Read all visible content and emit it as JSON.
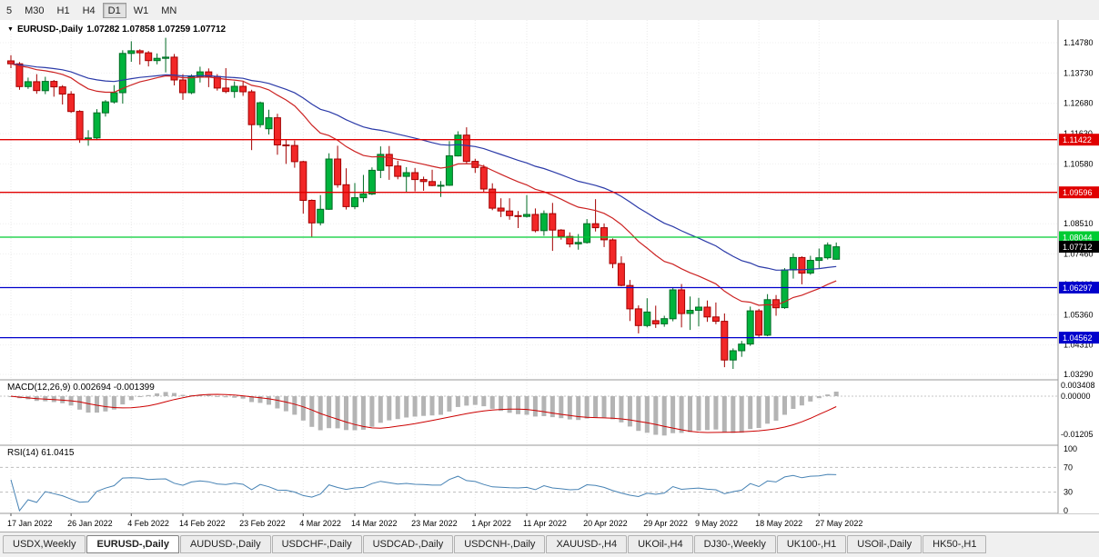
{
  "toolbar": {
    "timeframes": [
      "5",
      "M30",
      "H1",
      "H4",
      "D1",
      "W1",
      "MN"
    ],
    "active_timeframe": "D1"
  },
  "chart": {
    "header_symbol": "EURUSD-,Daily",
    "header_ohlc": "1.07282 1.07858 1.07259 1.07712"
  },
  "chart_data": {
    "type": "candlestick",
    "title": "EURUSD-,Daily",
    "colors": {
      "up": "#00b33c",
      "up_dark": "#006b24",
      "down": "#f22727",
      "down_dark": "#a30000",
      "ma_fast": "#cc2222",
      "ma_slow": "#2b3aa8",
      "rsi": "#4682b4",
      "macd_hist": "#b4b4b4",
      "macd_signal": "#cc0000",
      "hline_red": "#e00000",
      "hline_green": "#00cc33",
      "hline_blue": "#0000cc",
      "current_price_box": "#000000"
    },
    "ma_fast_period": 20,
    "ma_slow_period": 40,
    "price_axis_ticks": [
      1.1478,
      1.1373,
      1.1268,
      1.1163,
      1.1058,
      1.0953,
      1.0851,
      1.0746,
      1.0641,
      1.0536,
      1.0431,
      1.0329
    ],
    "hlines": [
      {
        "value": 1.11422,
        "color": "#e00000"
      },
      {
        "value": 1.09596,
        "color": "#e00000"
      },
      {
        "value": 1.08044,
        "color": "#00cc33"
      },
      {
        "value": 1.06297,
        "color": "#0000cc"
      },
      {
        "value": 1.04562,
        "color": "#0000cc"
      }
    ],
    "current_price": {
      "value": 1.07712
    },
    "x_ticks": [
      {
        "label": "17 Jan 2022",
        "index": 0
      },
      {
        "label": "26 Jan 2022",
        "index": 7
      },
      {
        "label": "4 Feb 2022",
        "index": 14
      },
      {
        "label": "14 Feb 2022",
        "index": 20
      },
      {
        "label": "23 Feb 2022",
        "index": 27
      },
      {
        "label": "4 Mar 2022",
        "index": 34
      },
      {
        "label": "14 Mar 2022",
        "index": 40
      },
      {
        "label": "23 Mar 2022",
        "index": 47
      },
      {
        "label": "1 Apr 2022",
        "index": 54
      },
      {
        "label": "11 Apr 2022",
        "index": 60
      },
      {
        "label": "20 Apr 2022",
        "index": 67
      },
      {
        "label": "29 Apr 2022",
        "index": 74
      },
      {
        "label": "9 May 2022",
        "index": 80
      },
      {
        "label": "18 May 2022",
        "index": 87
      },
      {
        "label": "27 May 2022",
        "index": 94
      }
    ],
    "macd": {
      "label": "MACD(12,26,9) 0.002694 -0.001399",
      "params": [
        12,
        26,
        9
      ],
      "main_value": 0.002694,
      "signal_value": -0.001399,
      "axis_ticks": [
        {
          "label": "0.003408",
          "value": 0.003408
        },
        {
          "label": "0.00000",
          "value": 0
        },
        {
          "label": "-0.01205",
          "value": -0.01205
        }
      ]
    },
    "rsi": {
      "label": "RSI(14) 61.0415",
      "period": 14,
      "value": 61.0415,
      "levels": [
        {
          "label": "100",
          "value": 100,
          "dashed": false
        },
        {
          "label": "70",
          "value": 70,
          "dashed": true
        },
        {
          "label": "30",
          "value": 30,
          "dashed": true
        },
        {
          "label": "0",
          "value": 0,
          "dashed": false
        }
      ]
    },
    "ohlc": [
      [
        1.1415,
        1.1435,
        1.139,
        1.1405
      ],
      [
        1.1405,
        1.1411,
        1.1315,
        1.1326
      ],
      [
        1.1326,
        1.1357,
        1.1318,
        1.1343
      ],
      [
        1.1343,
        1.1369,
        1.1301,
        1.1312
      ],
      [
        1.1312,
        1.136,
        1.13,
        1.1344
      ],
      [
        1.1344,
        1.1349,
        1.1291,
        1.1325
      ],
      [
        1.1325,
        1.1331,
        1.1264,
        1.13
      ],
      [
        1.13,
        1.131,
        1.1235,
        1.124
      ],
      [
        1.124,
        1.1244,
        1.1131,
        1.1144
      ],
      [
        1.1144,
        1.1175,
        1.1121,
        1.1148
      ],
      [
        1.1148,
        1.1248,
        1.1141,
        1.1235
      ],
      [
        1.1235,
        1.1279,
        1.1222,
        1.1273
      ],
      [
        1.1273,
        1.1331,
        1.1267,
        1.1305
      ],
      [
        1.1305,
        1.1452,
        1.1267,
        1.1441
      ],
      [
        1.1441,
        1.1483,
        1.1412,
        1.145
      ],
      [
        1.145,
        1.1455,
        1.1402,
        1.1443
      ],
      [
        1.1443,
        1.1449,
        1.1396,
        1.1416
      ],
      [
        1.1416,
        1.1441,
        1.1403,
        1.1424
      ],
      [
        1.1424,
        1.1495,
        1.1375,
        1.1428
      ],
      [
        1.1428,
        1.1439,
        1.133,
        1.1349
      ],
      [
        1.1349,
        1.1369,
        1.128,
        1.1305
      ],
      [
        1.1305,
        1.1368,
        1.13,
        1.136
      ],
      [
        1.136,
        1.1395,
        1.134,
        1.1377
      ],
      [
        1.1377,
        1.1389,
        1.1324,
        1.1361
      ],
      [
        1.1361,
        1.1369,
        1.1312,
        1.1321
      ],
      [
        1.1321,
        1.139,
        1.1303,
        1.1309
      ],
      [
        1.1309,
        1.1344,
        1.1287,
        1.1327
      ],
      [
        1.1327,
        1.1343,
        1.1294,
        1.1308
      ],
      [
        1.1308,
        1.1315,
        1.1106,
        1.1194
      ],
      [
        1.1194,
        1.1274,
        1.1184,
        1.127
      ],
      [
        1.118,
        1.1246,
        1.116,
        1.1218
      ],
      [
        1.1218,
        1.1232,
        1.109,
        1.1124
      ],
      [
        1.1124,
        1.1143,
        1.1058,
        1.1122
      ],
      [
        1.1122,
        1.1139,
        1.1045,
        1.1066
      ],
      [
        1.1066,
        1.1069,
        1.0886,
        1.0932
      ],
      [
        1.0932,
        1.0935,
        1.0806,
        1.0854
      ],
      [
        1.0854,
        1.095,
        1.0845,
        1.0901
      ],
      [
        1.0901,
        1.1095,
        1.0899,
        1.1075
      ],
      [
        1.1075,
        1.1121,
        1.0976,
        1.0986
      ],
      [
        1.0986,
        1.1043,
        1.09,
        1.091
      ],
      [
        1.091,
        1.0992,
        1.0901,
        1.0941
      ],
      [
        1.0941,
        1.102,
        1.0926,
        1.0954
      ],
      [
        1.0954,
        1.1046,
        1.095,
        1.1036
      ],
      [
        1.1036,
        1.1119,
        1.1009,
        1.1091
      ],
      [
        1.1091,
        1.112,
        1.1003,
        1.1051
      ],
      [
        1.1051,
        1.1069,
        1.1005,
        1.1015
      ],
      [
        1.1015,
        1.1047,
        1.0961,
        1.1028
      ],
      [
        1.1028,
        1.1044,
        1.0963,
        1.1004
      ],
      [
        1.1004,
        1.1014,
        1.0965,
        1.0997
      ],
      [
        1.0997,
        1.1038,
        1.0981,
        1.0983
      ],
      [
        1.0983,
        1.0999,
        1.0944,
        1.0984
      ],
      [
        1.0984,
        1.1137,
        1.0982,
        1.1086
      ],
      [
        1.1086,
        1.1171,
        1.1084,
        1.1158
      ],
      [
        1.1158,
        1.1185,
        1.1061,
        1.1067
      ],
      [
        1.1067,
        1.1076,
        1.1027,
        1.1046
      ],
      [
        1.1046,
        1.1055,
        1.096,
        1.0971
      ],
      [
        1.0971,
        1.0991,
        1.0898,
        1.0905
      ],
      [
        1.0905,
        1.0939,
        1.0874,
        1.0895
      ],
      [
        1.0895,
        1.0939,
        1.0865,
        1.0879
      ],
      [
        1.0879,
        1.0895,
        1.0836,
        1.0876
      ],
      [
        1.0876,
        1.095,
        1.0872,
        1.0883
      ],
      [
        1.0883,
        1.0904,
        1.0821,
        1.0827
      ],
      [
        1.0827,
        1.0897,
        1.0809,
        1.0886
      ],
      [
        1.0886,
        1.0923,
        1.0757,
        1.0829
      ],
      [
        1.0829,
        1.0832,
        1.0796,
        1.0807
      ],
      [
        1.0807,
        1.0821,
        1.0769,
        1.0781
      ],
      [
        1.0781,
        1.0815,
        1.0761,
        1.0786
      ],
      [
        1.0786,
        1.0867,
        1.0782,
        1.0851
      ],
      [
        1.0851,
        1.0936,
        1.0824,
        1.0837
      ],
      [
        1.0837,
        1.0852,
        1.077,
        1.0795
      ],
      [
        1.0795,
        1.08,
        1.0697,
        1.0713
      ],
      [
        1.0713,
        1.0738,
        1.0634,
        1.0637
      ],
      [
        1.0637,
        1.0656,
        1.0514,
        1.0556
      ],
      [
        1.0556,
        1.0568,
        1.0471,
        1.0498
      ],
      [
        1.0498,
        1.0593,
        1.0492,
        1.0545
      ],
      [
        1.0515,
        1.0567,
        1.049,
        1.0504
      ],
      [
        1.0504,
        1.0532,
        1.0494,
        1.0522
      ],
      [
        1.0522,
        1.0631,
        1.0513,
        1.0622
      ],
      [
        1.0622,
        1.0642,
        1.0492,
        1.054
      ],
      [
        1.054,
        1.0599,
        1.0483,
        1.0551
      ],
      [
        1.0551,
        1.0594,
        1.0495,
        1.0562
      ],
      [
        1.0562,
        1.0585,
        1.0511,
        1.0528
      ],
      [
        1.0528,
        1.0578,
        1.0503,
        1.0513
      ],
      [
        1.0513,
        1.054,
        1.0354,
        1.0379
      ],
      [
        1.0379,
        1.0419,
        1.0348,
        1.0411
      ],
      [
        1.0411,
        1.0445,
        1.039,
        1.0434
      ],
      [
        1.0434,
        1.0564,
        1.0428,
        1.0549
      ],
      [
        1.0549,
        1.0556,
        1.0459,
        1.0465
      ],
      [
        1.0465,
        1.0607,
        1.0461,
        1.0588
      ],
      [
        1.0588,
        1.0604,
        1.0532,
        1.056
      ],
      [
        1.056,
        1.0697,
        1.0556,
        1.0691
      ],
      [
        1.0691,
        1.0748,
        1.0661,
        1.0734
      ],
      [
        1.0734,
        1.0738,
        1.0641,
        1.068
      ],
      [
        1.068,
        1.074,
        1.0674,
        1.0724
      ],
      [
        1.0724,
        1.0765,
        1.0697,
        1.0733
      ],
      [
        1.0733,
        1.0786,
        1.0727,
        1.0777
      ],
      [
        1.07282,
        1.07858,
        1.07259,
        1.07712
      ]
    ]
  },
  "tabs": [
    {
      "label": "USDX,Weekly",
      "active": false
    },
    {
      "label": "EURUSD-,Daily",
      "active": true
    },
    {
      "label": "AUDUSD-,Daily",
      "active": false
    },
    {
      "label": "USDCHF-,Daily",
      "active": false
    },
    {
      "label": "USDCAD-,Daily",
      "active": false
    },
    {
      "label": "USDCNH-,Daily",
      "active": false
    },
    {
      "label": "XAUUSD-,H4",
      "active": false
    },
    {
      "label": "UKOil-,H4",
      "active": false
    },
    {
      "label": "DJ30-,Weekly",
      "active": false
    },
    {
      "label": "UK100-,H1",
      "active": false
    },
    {
      "label": "USOil-,Daily",
      "active": false
    },
    {
      "label": "HK50-,H1",
      "active": false
    }
  ]
}
